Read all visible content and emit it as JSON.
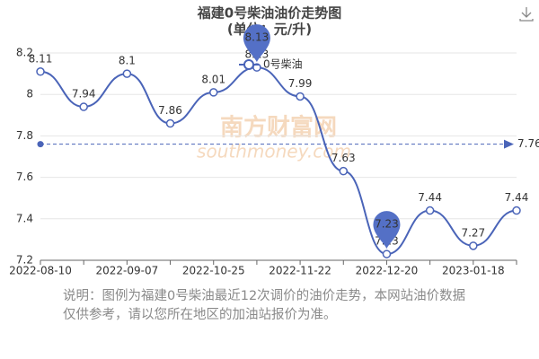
{
  "chart_data": {
    "type": "line",
    "title": "福建0号柴油油价走势图",
    "subtitle": "(单位：元/升)",
    "categories": [
      "2022-08-10",
      null,
      "2022-09-07",
      null,
      "2022-10-25",
      null,
      "2022-11-22",
      null,
      "2022-12-20",
      null,
      "2023-01-18",
      null
    ],
    "series": [
      {
        "name": "0号柴油",
        "color": "#4a64b8",
        "values": [
          8.11,
          7.94,
          8.1,
          7.86,
          8.01,
          8.13,
          7.99,
          7.63,
          7.23,
          7.44,
          7.27,
          7.44
        ]
      }
    ],
    "ylim": [
      7.2,
      8.2
    ],
    "yticks": [
      7.2,
      7.4,
      7.6,
      7.8,
      8,
      8.2
    ],
    "grid": true,
    "mark_line": 7.76,
    "watermark": "南方财富网",
    "watermark_sub": "southmoney.com",
    "note": "说明：图例为福建0号柴油最近12次调价的油价走势，本网站油价数据仅供参考，请以您所在地区的加油站报价为准。"
  }
}
